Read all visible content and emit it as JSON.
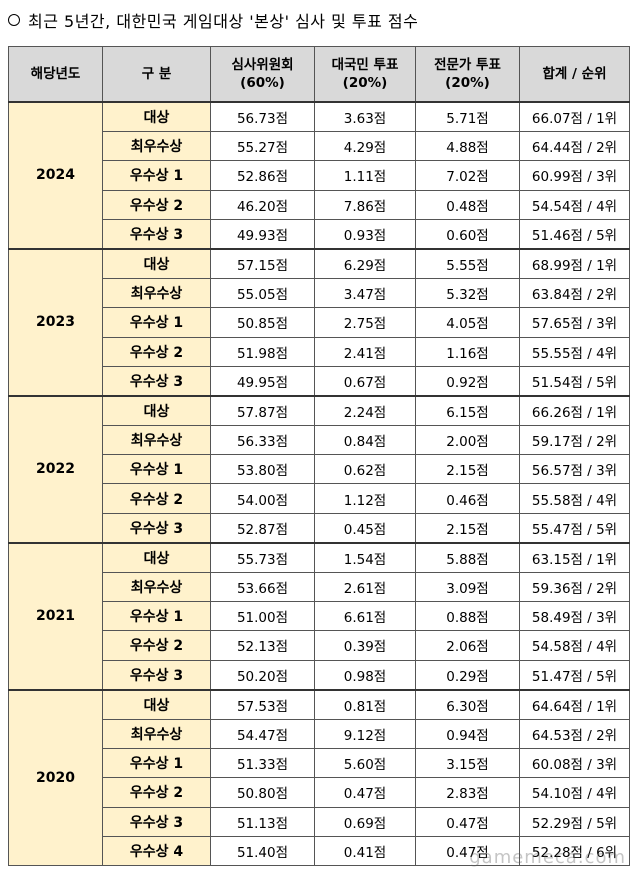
{
  "title": "최근 5년간, 대한민국 게임대상 '본상' 심사 및 투표 점수",
  "headers": {
    "year": "해당년도",
    "category": "구 분",
    "jury_line1": "심사위원회",
    "jury_line2": "(60%)",
    "public_line1": "대국민 투표",
    "public_line2": "(20%)",
    "expert_line1": "전문가 투표",
    "expert_line2": "(20%)",
    "total": "합계 / 순위"
  },
  "groups": [
    {
      "year": "2024",
      "rows": [
        {
          "category": "대상",
          "jury": "56.73점",
          "public": "3.63점",
          "expert": "5.71점",
          "total": "66.07점 / 1위"
        },
        {
          "category": "최우수상",
          "jury": "55.27점",
          "public": "4.29점",
          "expert": "4.88점",
          "total": "64.44점 / 2위"
        },
        {
          "category": "우수상 1",
          "jury": "52.86점",
          "public": "1.11점",
          "expert": "7.02점",
          "total": "60.99점 / 3위"
        },
        {
          "category": "우수상 2",
          "jury": "46.20점",
          "public": "7.86점",
          "expert": "0.48점",
          "total": "54.54점 / 4위"
        },
        {
          "category": "우수상 3",
          "jury": "49.93점",
          "public": "0.93점",
          "expert": "0.60점",
          "total": "51.46점 / 5위"
        }
      ]
    },
    {
      "year": "2023",
      "rows": [
        {
          "category": "대상",
          "jury": "57.15점",
          "public": "6.29점",
          "expert": "5.55점",
          "total": "68.99점 / 1위"
        },
        {
          "category": "최우수상",
          "jury": "55.05점",
          "public": "3.47점",
          "expert": "5.32점",
          "total": "63.84점 / 2위"
        },
        {
          "category": "우수상 1",
          "jury": "50.85점",
          "public": "2.75점",
          "expert": "4.05점",
          "total": "57.65점 / 3위"
        },
        {
          "category": "우수상 2",
          "jury": "51.98점",
          "public": "2.41점",
          "expert": "1.16점",
          "total": "55.55점 / 4위"
        },
        {
          "category": "우수상 3",
          "jury": "49.95점",
          "public": "0.67점",
          "expert": "0.92점",
          "total": "51.54점 / 5위"
        }
      ]
    },
    {
      "year": "2022",
      "rows": [
        {
          "category": "대상",
          "jury": "57.87점",
          "public": "2.24점",
          "expert": "6.15점",
          "total": "66.26점 / 1위"
        },
        {
          "category": "최우수상",
          "jury": "56.33점",
          "public": "0.84점",
          "expert": "2.00점",
          "total": "59.17점 / 2위"
        },
        {
          "category": "우수상 1",
          "jury": "53.80점",
          "public": "0.62점",
          "expert": "2.15점",
          "total": "56.57점 / 3위"
        },
        {
          "category": "우수상 2",
          "jury": "54.00점",
          "public": "1.12점",
          "expert": "0.46점",
          "total": "55.58점 / 4위"
        },
        {
          "category": "우수상 3",
          "jury": "52.87점",
          "public": "0.45점",
          "expert": "2.15점",
          "total": "55.47점 / 5위"
        }
      ]
    },
    {
      "year": "2021",
      "rows": [
        {
          "category": "대상",
          "jury": "55.73점",
          "public": "1.54점",
          "expert": "5.88점",
          "total": "63.15점 / 1위"
        },
        {
          "category": "최우수상",
          "jury": "53.66점",
          "public": "2.61점",
          "expert": "3.09점",
          "total": "59.36점 / 2위"
        },
        {
          "category": "우수상 1",
          "jury": "51.00점",
          "public": "6.61점",
          "expert": "0.88점",
          "total": "58.49점 / 3위"
        },
        {
          "category": "우수상 2",
          "jury": "52.13점",
          "public": "0.39점",
          "expert": "2.06점",
          "total": "54.58점 / 4위"
        },
        {
          "category": "우수상 3",
          "jury": "50.20점",
          "public": "0.98점",
          "expert": "0.29점",
          "total": "51.47점 / 5위"
        }
      ]
    },
    {
      "year": "2020",
      "rows": [
        {
          "category": "대상",
          "jury": "57.53점",
          "public": "0.81점",
          "expert": "6.30점",
          "total": "64.64점 / 1위"
        },
        {
          "category": "최우수상",
          "jury": "54.47점",
          "public": "9.12점",
          "expert": "0.94점",
          "total": "64.53점 / 2위"
        },
        {
          "category": "우수상 1",
          "jury": "51.33점",
          "public": "5.60점",
          "expert": "3.15점",
          "total": "60.08점 / 3위"
        },
        {
          "category": "우수상 2",
          "jury": "50.80점",
          "public": "0.47점",
          "expert": "2.83점",
          "total": "54.10점 / 4위"
        },
        {
          "category": "우수상 3",
          "jury": "51.13점",
          "public": "0.69점",
          "expert": "0.47점",
          "total": "52.29점 / 5위"
        },
        {
          "category": "우수상 4",
          "jury": "51.40점",
          "public": "0.41점",
          "expert": "0.47점",
          "total": "52.28점 / 6위"
        }
      ]
    }
  ],
  "watermark": "gamemeca.com",
  "colors": {
    "header_bg": "#d9d9d9",
    "label_bg": "#fff2cc",
    "border": "#555555"
  }
}
